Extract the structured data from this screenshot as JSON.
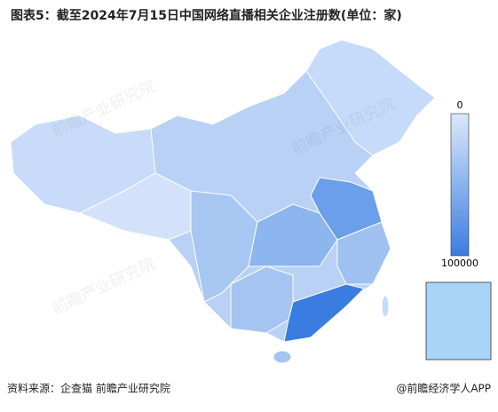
{
  "header": {
    "title": "图表5：截至2024年7月15日中国网络直播相关企业注册数(单位：家)"
  },
  "legend": {
    "min": 0,
    "max": 100000,
    "colors": [
      "#dce8fb",
      "#3a7de0"
    ]
  },
  "watermark": "前瞻产业研究院",
  "footer": {
    "source": "资料来源：企查猫 前瞻产业研究院",
    "credit": "@前瞻经济学人APP"
  }
}
